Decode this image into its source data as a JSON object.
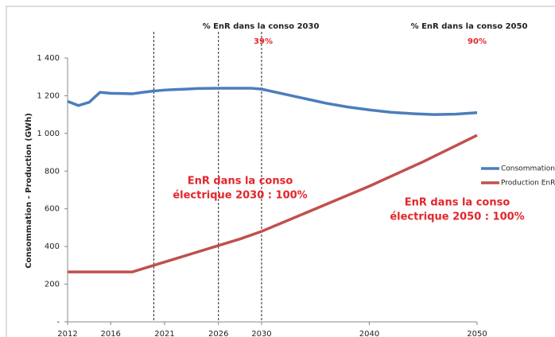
{
  "chart_data": {
    "type": "line",
    "ylabel": "Consommation - Production (GWh)",
    "xlim": [
      2012,
      2050
    ],
    "xticks": [
      2012,
      2016,
      2021,
      2026,
      2030,
      2040,
      2050
    ],
    "ylim": [
      0,
      1400
    ],
    "yticks": [
      {
        "value": 0,
        "label": "-"
      },
      200,
      400,
      600,
      800,
      {
        "value": 1000,
        "label": "1 000"
      },
      {
        "value": 1200,
        "label": "1 200"
      },
      {
        "value": 1400,
        "label": "1 400"
      }
    ],
    "vlines": [
      2020,
      2026,
      2030
    ],
    "series": [
      {
        "name": "Consommation",
        "color": "#4a7ebb",
        "x": [
          2012,
          2013,
          2014,
          2015,
          2016,
          2017,
          2018,
          2019,
          2020,
          2021,
          2022,
          2023,
          2024,
          2026,
          2028,
          2029,
          2030,
          2032,
          2034,
          2036,
          2038,
          2040,
          2042,
          2044,
          2046,
          2048,
          2050
        ],
        "values": [
          1170,
          1148,
          1165,
          1218,
          1213,
          1212,
          1210,
          1218,
          1225,
          1230,
          1233,
          1235,
          1238,
          1240,
          1240,
          1240,
          1235,
          1210,
          1185,
          1160,
          1140,
          1125,
          1112,
          1105,
          1100,
          1102,
          1110
        ]
      },
      {
        "name": "Production EnR",
        "color": "#c0504d",
        "x": [
          2012,
          2018,
          2020,
          2022,
          2024,
          2026,
          2028,
          2030,
          2035,
          2040,
          2045,
          2050
        ],
        "values": [
          265,
          265,
          300,
          335,
          370,
          405,
          440,
          480,
          600,
          720,
          850,
          990
        ]
      }
    ],
    "top_labels": [
      {
        "title": "% EnR dans la conso 2030",
        "value": "39%"
      },
      {
        "title": "% EnR dans la conso 2050",
        "value": "90%"
      }
    ],
    "annotations": [
      [
        "EnR dans la conso",
        "électrique 2030 : 100%"
      ],
      [
        "EnR dans la conso",
        "électrique 2050 : 100%"
      ]
    ]
  }
}
